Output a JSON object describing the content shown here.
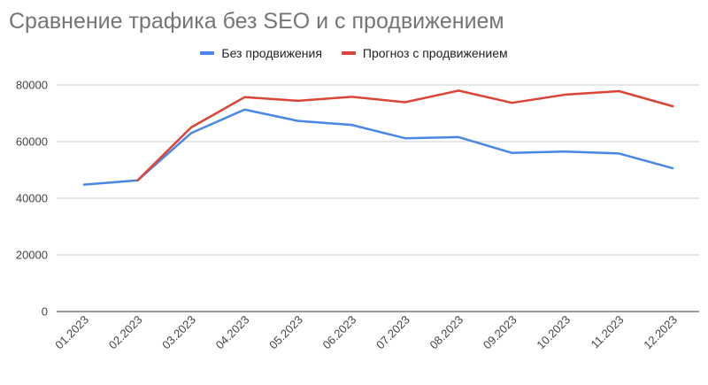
{
  "chart_data": {
    "type": "line",
    "title": "Сравнение трафика без SEO и с продвижением",
    "xlabel": "",
    "ylabel": "",
    "categories": [
      "01.2023",
      "02.2023",
      "03.2023",
      "04.2023",
      "05.2023",
      "06.2023",
      "07.2023",
      "08.2023",
      "09.2023",
      "10.2023",
      "11.2023",
      "12.2023"
    ],
    "ylim": [
      0,
      80000
    ],
    "yticks": [
      "0",
      "20000",
      "40000",
      "60000",
      "80000"
    ],
    "ytick_values": [
      0,
      20000,
      40000,
      60000,
      80000
    ],
    "grid": true,
    "legend_position": "top-center",
    "series": [
      {
        "name": "Без продвижения",
        "color": "#4a86e8",
        "values": [
          44800,
          46300,
          63000,
          71300,
          67300,
          65900,
          61200,
          61600,
          56000,
          56500,
          55800,
          50600
        ]
      },
      {
        "name": "Прогноз с продвижением",
        "color": "#db4437",
        "values": [
          null,
          46300,
          65000,
          75700,
          74400,
          75800,
          73900,
          78000,
          73700,
          76600,
          77800,
          72500
        ]
      }
    ]
  }
}
